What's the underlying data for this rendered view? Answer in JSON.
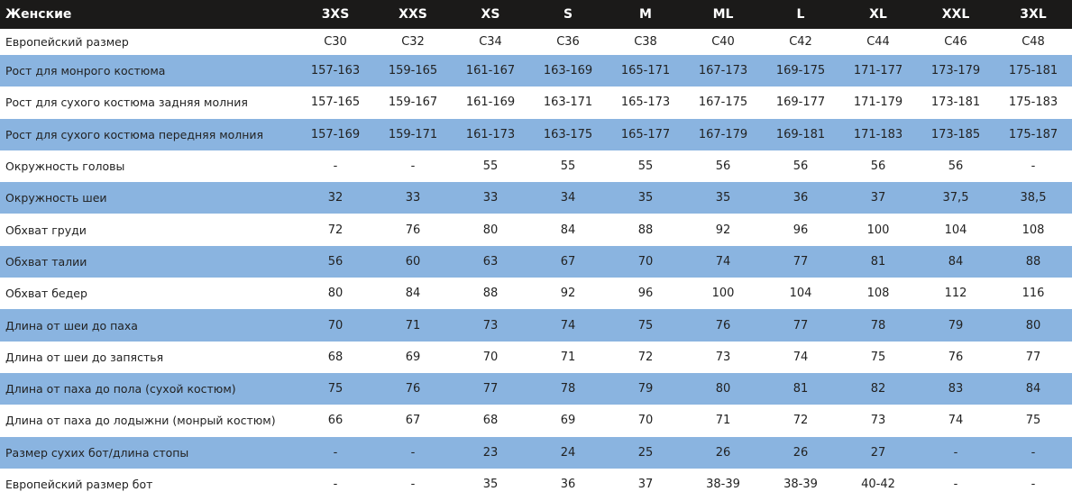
{
  "header": {
    "title": "Женские",
    "sizes": [
      "3XS",
      "XXS",
      "XS",
      "S",
      "M",
      "ML",
      "L",
      "XL",
      "XXL",
      "3XL"
    ]
  },
  "rows": [
    {
      "label": "Европейский размер",
      "values": [
        "C30",
        "C32",
        "C34",
        "C36",
        "C38",
        "C40",
        "C42",
        "C44",
        "C46",
        "C48"
      ]
    },
    {
      "label": "Рост для монрого костюма",
      "values": [
        "157-163",
        "159-165",
        "161-167",
        "163-169",
        "165-171",
        "167-173",
        "169-175",
        "171-177",
        "173-179",
        "175-181"
      ]
    },
    {
      "label": "Рост для сухого костюма задняя молния",
      "values": [
        "157-165",
        "159-167",
        "161-169",
        "163-171",
        "165-173",
        "167-175",
        "169-177",
        "171-179",
        "173-181",
        "175-183"
      ]
    },
    {
      "label": "Рост для сухого костюма передняя молния",
      "values": [
        "157-169",
        "159-171",
        "161-173",
        "163-175",
        "165-177",
        "167-179",
        "169-181",
        "171-183",
        "173-185",
        "175-187"
      ]
    },
    {
      "label": "Окружность головы",
      "values": [
        "-",
        "-",
        "55",
        "55",
        "55",
        "56",
        "56",
        "56",
        "56",
        "-"
      ]
    },
    {
      "label": "Окружность шеи",
      "values": [
        "32",
        "33",
        "33",
        "34",
        "35",
        "35",
        "36",
        "37",
        "37,5",
        "38,5"
      ]
    },
    {
      "label": "Обхват груди",
      "values": [
        "72",
        "76",
        "80",
        "84",
        "88",
        "92",
        "96",
        "100",
        "104",
        "108"
      ]
    },
    {
      "label": "Обхват талии",
      "values": [
        "56",
        "60",
        "63",
        "67",
        "70",
        "74",
        "77",
        "81",
        "84",
        "88"
      ]
    },
    {
      "label": "Обхват бедер",
      "values": [
        "80",
        "84",
        "88",
        "92",
        "96",
        "100",
        "104",
        "108",
        "112",
        "116"
      ]
    },
    {
      "label": "Длина от шеи до паха",
      "values": [
        "70",
        "71",
        "73",
        "74",
        "75",
        "76",
        "77",
        "78",
        "79",
        "80"
      ]
    },
    {
      "label": "Длина от шеи до запястья",
      "values": [
        "68",
        "69",
        "70",
        "71",
        "72",
        "73",
        "74",
        "75",
        "76",
        "77"
      ]
    },
    {
      "label": "Длина от паха до пола (сухой костюм)",
      "values": [
        "75",
        "76",
        "77",
        "78",
        "79",
        "80",
        "81",
        "82",
        "83",
        "84"
      ]
    },
    {
      "label": "Длина от паха до лодыжни (монрый костюм)",
      "values": [
        "66",
        "67",
        "68",
        "69",
        "70",
        "71",
        "72",
        "73",
        "74",
        "75"
      ]
    },
    {
      "label": "Размер сухих бот/длина стопы",
      "values": [
        "-",
        "-",
        "23",
        "24",
        "25",
        "26",
        "26",
        "27",
        "-",
        "-"
      ]
    },
    {
      "label": "Европейский размер бот",
      "values": [
        "-",
        "-",
        "35",
        "36",
        "37",
        "38-39",
        "38-39",
        "40-42",
        "-",
        "-"
      ]
    }
  ],
  "colors": {
    "header_bg": "#1b1a19",
    "stripe": "#8ab4e0"
  }
}
